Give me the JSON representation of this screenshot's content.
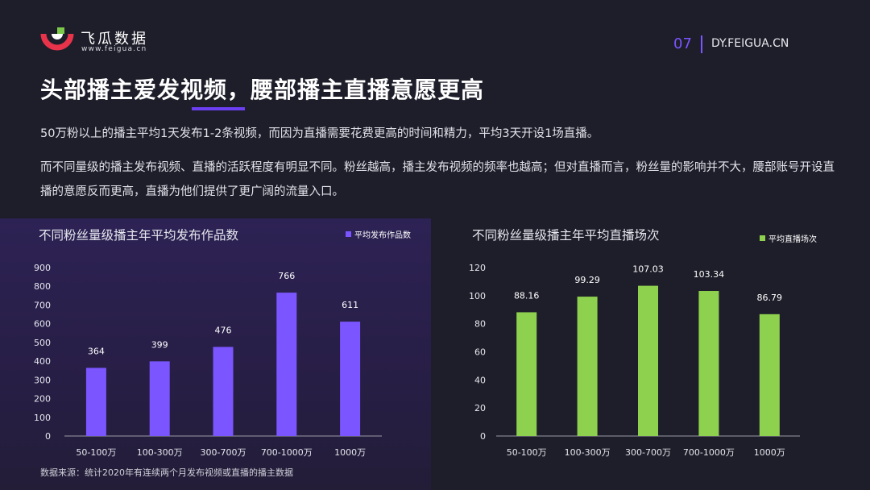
{
  "header": {
    "logo_cn": "飞瓜数据",
    "logo_en": "www.feigua.cn",
    "page_number": "07",
    "site": "DY.FEIGUA.CN"
  },
  "title": "头部播主爱发视频，腰部播主直播意愿更高",
  "paragraphs": [
    "50万粉以上的播主平均1天发布1-2条视频，而因为直播需要花费更高的时间和精力，平均3天开设1场直播。",
    "而不同量级的播主发布视频、直播的活跃程度有明显不同。粉丝越高，播主发布视频的频率也越高；但对直播而言，粉丝量的影响并不大，腰部账号开设直播的意愿反而更高，直播为他们提供了更广阔的流量入口。"
  ],
  "source": "数据来源：统计2020年有连续两个月发布视频或直播的播主数据",
  "colors": {
    "accent": "#7b55ff",
    "green": "#8ed14e",
    "bg": "#1e1e2a"
  },
  "chart_data": [
    {
      "type": "bar",
      "title": "不同粉丝量级播主年平均发布作品数",
      "categories": [
        "50-100万",
        "100-300万",
        "300-700万",
        "700-1000万",
        "1000万"
      ],
      "series": [
        {
          "name": "平均发布作品数",
          "values": [
            364,
            399,
            476,
            766,
            611
          ]
        }
      ],
      "ylim": [
        0,
        900
      ],
      "yticks": [
        0,
        100,
        200,
        300,
        400,
        500,
        600,
        700,
        800,
        900
      ],
      "color": "#7b55ff",
      "legend": "top-right"
    },
    {
      "type": "bar",
      "title": "不同粉丝量级播主年平均直播场次",
      "categories": [
        "50-100万",
        "100-300万",
        "300-700万",
        "700-1000万",
        "1000万"
      ],
      "series": [
        {
          "name": "平均直播场次",
          "values": [
            88.16,
            99.29,
            107.03,
            103.34,
            86.79
          ]
        }
      ],
      "ylim": [
        0,
        120
      ],
      "yticks": [
        0,
        20,
        40,
        60,
        80,
        100,
        120
      ],
      "color": "#8ed14e",
      "legend": "top-right"
    }
  ]
}
